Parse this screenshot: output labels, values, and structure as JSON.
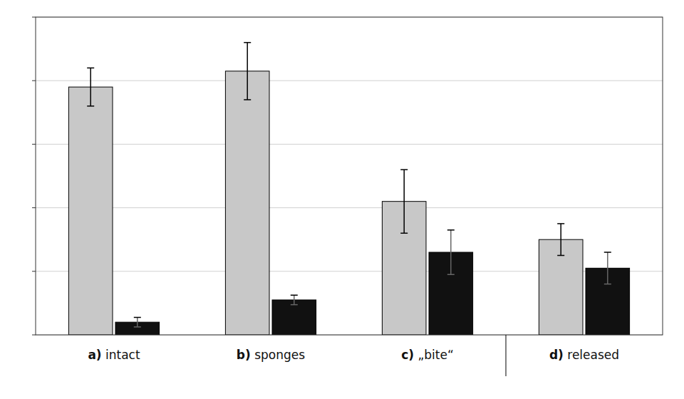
{
  "chart_data": {
    "type": "bar",
    "categories": [
      "a) intact",
      "b) sponges",
      "c) „bite“",
      "d) released"
    ],
    "series": [
      {
        "color": "#c8c8c8",
        "values": [
          78,
          83,
          42,
          30
        ],
        "errors": [
          6,
          9,
          10,
          5
        ]
      },
      {
        "color": "#111111",
        "values": [
          4,
          11,
          26,
          21
        ],
        "errors": [
          1.5,
          1.5,
          7,
          5
        ]
      }
    ],
    "ylim": [
      0,
      100
    ],
    "yticks": [
      0,
      20,
      40,
      60,
      80,
      100
    ],
    "grid": true,
    "tick_labels": "x"
  }
}
